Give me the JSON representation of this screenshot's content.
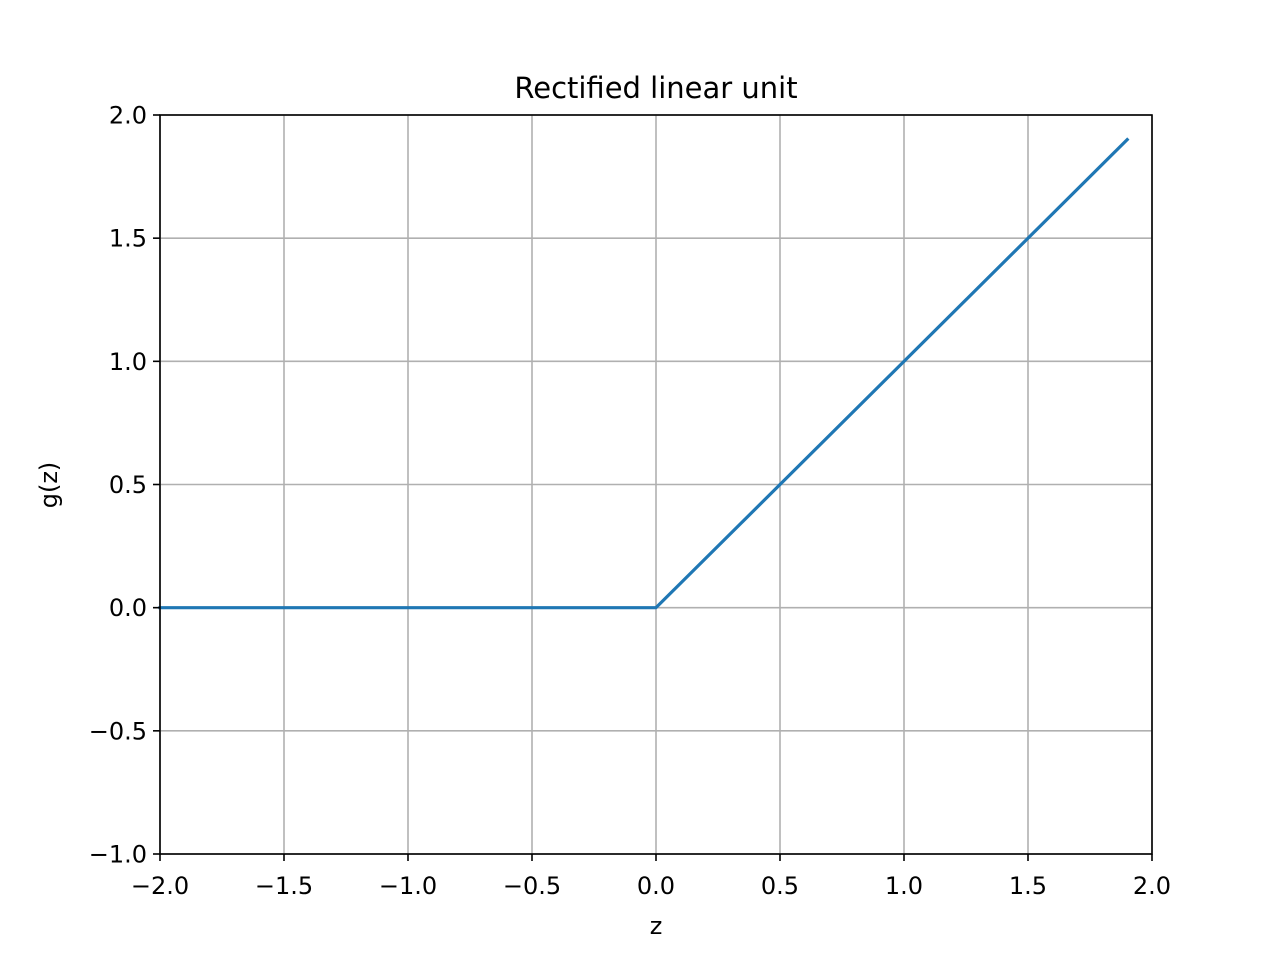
{
  "chart_data": {
    "type": "line",
    "title": "Rectified linear unit",
    "xlabel": "z",
    "ylabel": "g(z)",
    "xlim": [
      -2.0,
      2.0
    ],
    "ylim": [
      -1.0,
      2.0
    ],
    "grid": true,
    "xticks": [
      -2.0,
      -1.5,
      -1.0,
      -0.5,
      0.0,
      0.5,
      1.0,
      1.5,
      2.0
    ],
    "xtick_labels": [
      "−2.0",
      "−1.5",
      "−1.0",
      "−0.5",
      "0.0",
      "0.5",
      "1.0",
      "1.5",
      "2.0"
    ],
    "yticks": [
      -1.0,
      -0.5,
      0.0,
      0.5,
      1.0,
      1.5,
      2.0
    ],
    "ytick_labels": [
      "−1.0",
      "−0.5",
      "0.0",
      "0.5",
      "1.0",
      "1.5",
      "2.0"
    ],
    "series": [
      {
        "color": "#1f77b4",
        "x": [
          -2.0,
          0.0,
          1.9
        ],
        "y": [
          0.0,
          0.0,
          1.9
        ]
      }
    ]
  }
}
